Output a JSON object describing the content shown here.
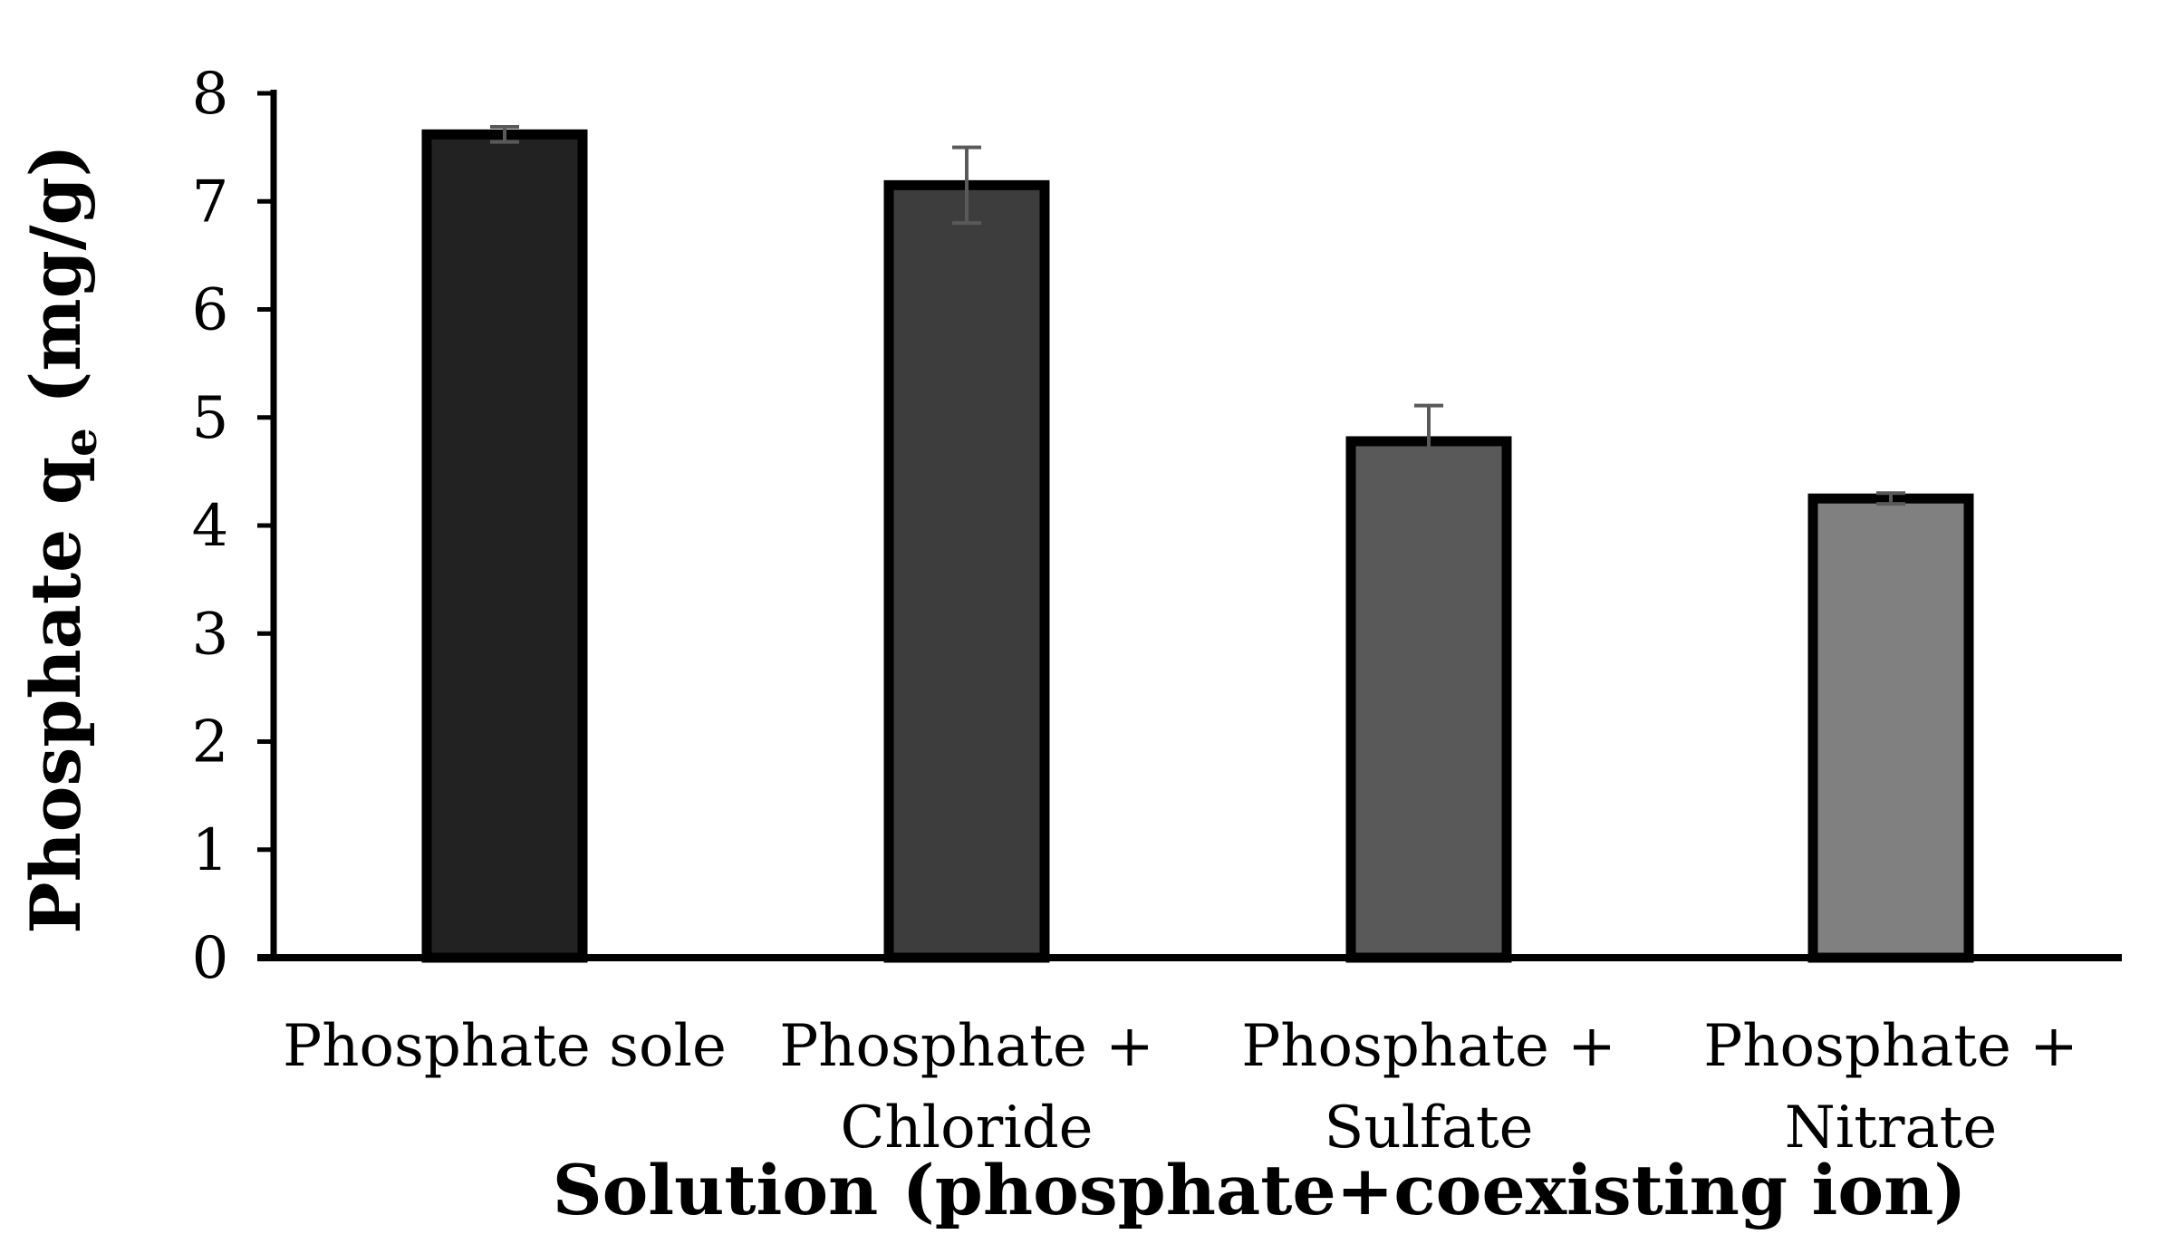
{
  "chart_data": {
    "type": "bar",
    "title": "",
    "xlabel": "Solution (phosphate+coexisting ion)",
    "ylabel": {
      "main": "Phosphate q",
      "subscript": "e",
      "unit": "(mg/g)"
    },
    "ylim": [
      0,
      8
    ],
    "yticks": [
      "0",
      "1",
      "2",
      "3",
      "4",
      "5",
      "6",
      "7",
      "8"
    ],
    "grid": false,
    "legend": "none",
    "categories": [
      [
        "Phosphate sole"
      ],
      [
        "Phosphate +",
        "Chloride"
      ],
      [
        "Phosphate +",
        "Sulfate"
      ],
      [
        "Phosphate +",
        "Nitrate"
      ]
    ],
    "values": [
      7.62,
      7.15,
      4.78,
      4.25
    ],
    "errors": [
      0.07,
      0.35,
      0.33,
      0.05
    ],
    "bar_colors": [
      "#222222",
      "#3d3d3d",
      "#595959",
      "#808080"
    ],
    "error_bar_color": "#595959"
  }
}
